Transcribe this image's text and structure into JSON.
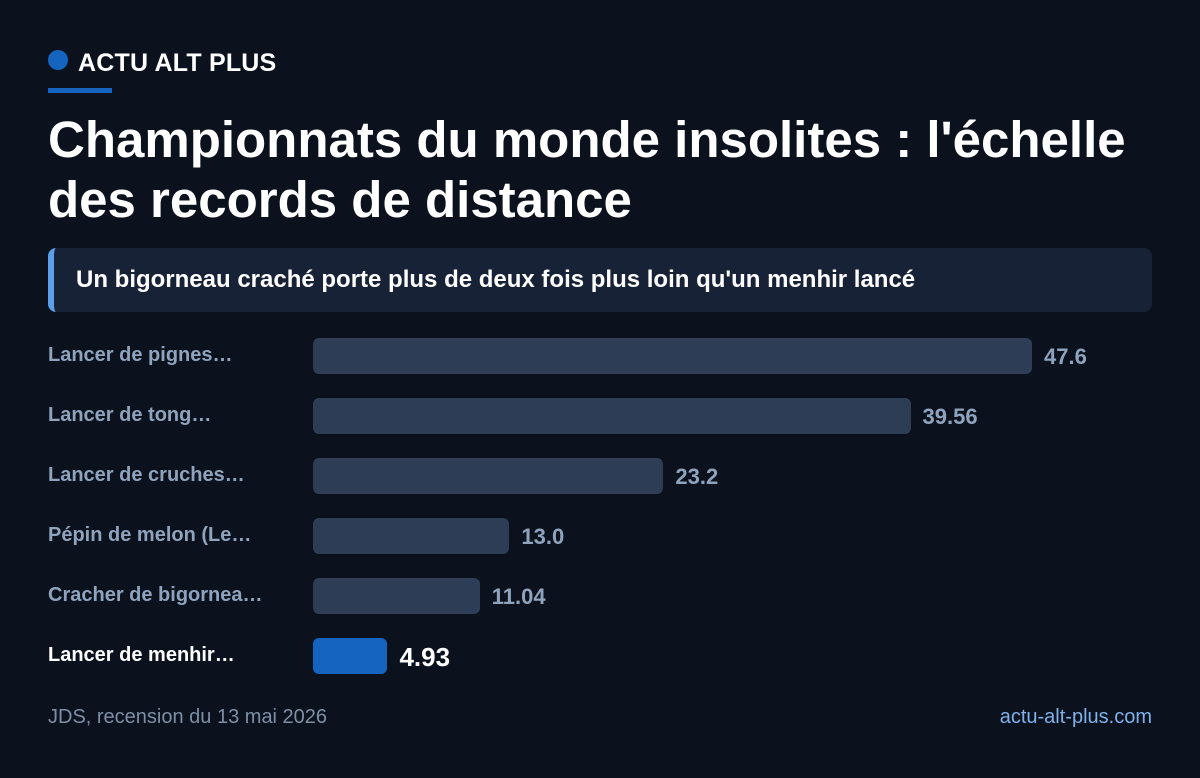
{
  "brand": {
    "name": "ACTU ALT PLUS",
    "accent_color": "#1565c0"
  },
  "headline": {
    "title": "Championnats du monde insolites : l'échelle des records de distance",
    "subtitle": "Un bigorneau craché porte plus de deux fois plus loin qu'un menhir lancé"
  },
  "chart_data": {
    "type": "bar",
    "orientation": "horizontal",
    "categories": [
      "Lancer de pignes…",
      "Lancer de tong…",
      "Lancer de cruches…",
      "Pépin de melon (Le…",
      "Cracher de bigornea…",
      "Lancer de menhir…"
    ],
    "values": [
      47.6,
      39.56,
      23.2,
      13.0,
      11.04,
      4.93
    ],
    "value_labels": [
      "47.6",
      "39.56",
      "23.2",
      "13.0",
      "11.04",
      "4.93"
    ],
    "highlight_index": 5,
    "colors": {
      "bar": "#2e3d56",
      "highlight_bar": "#1565c0"
    },
    "xlim": [
      0,
      47.6
    ],
    "grid": false,
    "legend": "none"
  },
  "footer": {
    "source": "JDS, recension du 13 mai 2026",
    "site": "actu-alt-plus.com"
  }
}
